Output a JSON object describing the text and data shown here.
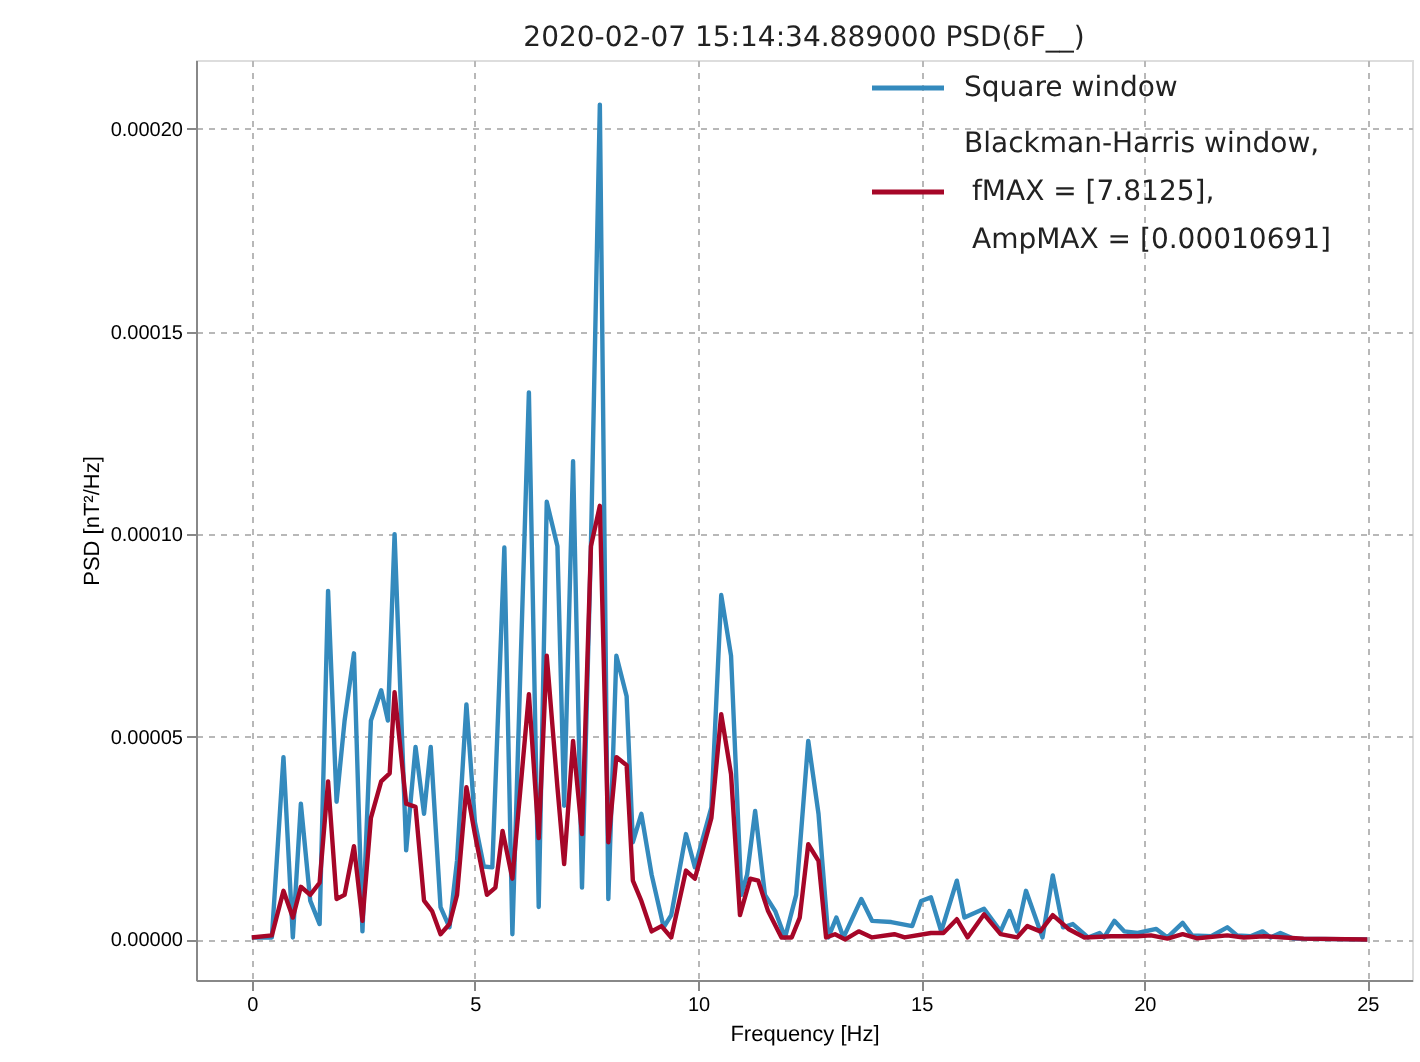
{
  "chart_data": {
    "type": "line",
    "title": "2020-02-07 15:14:34.889000 PSD(δF__)",
    "xlabel": "Frequency [Hz]",
    "ylabel": "PSD [nT²/Hz]",
    "xlim": [
      -1.25,
      26
    ],
    "ylim": [
      -1e-05,
      0.000217
    ],
    "xticks": [
      0,
      5,
      10,
      15,
      20,
      25
    ],
    "yticks": [
      {
        "value": 0,
        "label": "0.00000"
      },
      {
        "value": 5e-05,
        "label": "0.00005"
      },
      {
        "value": 0.0001,
        "label": "0.00010"
      },
      {
        "value": 0.00015,
        "label": "0.00015"
      },
      {
        "value": 0.0002,
        "label": "0.00020"
      }
    ],
    "grid": true,
    "legend": "top right",
    "marker": "none",
    "line_style": "solid",
    "series": [
      {
        "name": "Square window",
        "color": "#348abd",
        "x": [
          0,
          0.45,
          0.71,
          0.92,
          1.1,
          1.31,
          1.52,
          1.71,
          1.9,
          2.08,
          2.29,
          2.48,
          2.67,
          2.9,
          3.05,
          3.2,
          3.46,
          3.67,
          3.86,
          4.01,
          4.23,
          4.43,
          4.6,
          4.81,
          5.0,
          5.2,
          5.39,
          5.66,
          5.84,
          6.21,
          6.43,
          6.61,
          6.85,
          7.0,
          7.2,
          7.4,
          7.6,
          7.8,
          7.99,
          8.17,
          8.4,
          8.54,
          8.73,
          8.96,
          9.23,
          9.4,
          9.73,
          9.93,
          10.3,
          10.52,
          10.74,
          10.97,
          11.1,
          11.28,
          11.5,
          11.73,
          11.95,
          12.2,
          12.47,
          12.7,
          12.92,
          13.1,
          13.26,
          13.66,
          13.9,
          14.33,
          14.8,
          15.0,
          15.22,
          15.45,
          15.8,
          15.97,
          16.41,
          16.78,
          16.98,
          17.15,
          17.35,
          17.72,
          17.95,
          18.18,
          18.4,
          18.74,
          19.0,
          19.1,
          19.33,
          19.55,
          19.85,
          20.27,
          20.52,
          20.86,
          21.07,
          21.5,
          21.86,
          22.08,
          22.38,
          22.65,
          22.83,
          23.05,
          23.35,
          25.0
        ],
        "values": [
          5e-07,
          5e-07,
          4.5e-05,
          5e-07,
          3.35e-05,
          9.6e-06,
          3.8e-06,
          8.6e-05,
          3.4e-05,
          5.4e-05,
          7.06e-05,
          2e-06,
          5.4e-05,
          6.15e-05,
          5.4e-05,
          0.0001,
          2.2e-05,
          4.75e-05,
          3.1e-05,
          4.75e-05,
          8e-06,
          3e-06,
          1.95e-05,
          5.8e-05,
          2.9e-05,
          1.8e-05,
          1.78e-05,
          9.67e-05,
          1.3e-06,
          0.000135,
          8e-06,
          0.000108,
          9.7e-05,
          3.3e-05,
          0.000118,
          1.28e-05,
          9.7e-05,
          0.000206,
          1e-05,
          7e-05,
          6e-05,
          2.4e-05,
          3.1e-05,
          1.6e-05,
          3e-06,
          6e-06,
          2.6e-05,
          1.78e-05,
          3.26e-05,
          8.5e-05,
          7e-05,
          1.1e-05,
          1.6e-05,
          3.17e-05,
          1.1e-05,
          7e-06,
          5e-07,
          1.1e-05,
          4.9e-05,
          3.1e-05,
          5e-07,
          5.4e-06,
          5e-07,
          1e-05,
          4.6e-06,
          4.3e-06,
          3.3e-06,
          9.5e-06,
          1.04e-05,
          2e-06,
          1.45e-05,
          5.4e-06,
          7.6e-06,
          2e-06,
          7e-06,
          2e-06,
          1.2e-05,
          5e-07,
          1.58e-05,
          3e-06,
          3.8e-06,
          5e-07,
          1.6e-06,
          5e-07,
          4.6e-06,
          2e-06,
          1.6e-06,
          2.6e-06,
          5e-07,
          4.1e-06,
          1e-06,
          8e-07,
          3e-06,
          1e-06,
          8e-07,
          2e-06,
          5e-07,
          1.6e-06,
          2e-07,
          0
        ]
      },
      {
        "name": "Blackman-Harris window, fMAX = [7.8125], AmpMAX = [0.00010691]",
        "color": "#a60628",
        "x": [
          0,
          0.45,
          0.71,
          0.92,
          1.1,
          1.31,
          1.52,
          1.71,
          1.9,
          2.08,
          2.29,
          2.48,
          2.67,
          2.9,
          3.09,
          3.2,
          3.46,
          3.67,
          3.86,
          4.04,
          4.23,
          4.43,
          4.6,
          4.81,
          5.0,
          5.27,
          5.46,
          5.62,
          5.84,
          6.21,
          6.43,
          6.61,
          6.85,
          7.0,
          7.2,
          7.4,
          7.6,
          7.8,
          7.99,
          8.17,
          8.4,
          8.54,
          8.73,
          8.96,
          9.18,
          9.4,
          9.73,
          9.93,
          10.3,
          10.52,
          10.74,
          10.94,
          11.17,
          11.35,
          11.57,
          11.87,
          12.1,
          12.28,
          12.47,
          12.7,
          12.87,
          13.07,
          13.3,
          13.6,
          13.9,
          14.4,
          14.63,
          15.22,
          15.5,
          15.8,
          16.04,
          16.41,
          16.78,
          17.15,
          17.38,
          17.67,
          17.95,
          18.3,
          18.66,
          19.26,
          19.85,
          20.15,
          20.52,
          20.86,
          21.19,
          21.86,
          22.23,
          22.68,
          23.13,
          23.57,
          25.0
        ],
        "values": [
          5e-07,
          1e-06,
          1.2e-05,
          5.4e-06,
          1.3e-05,
          1.1e-05,
          1.4e-05,
          3.9e-05,
          1e-05,
          1.1e-05,
          2.3e-05,
          4.6e-06,
          3e-05,
          3.9e-05,
          4.1e-05,
          6.1e-05,
          3.35e-05,
          3.27e-05,
          9.6e-06,
          7e-06,
          1.3e-06,
          3.8e-06,
          1.1e-05,
          3.76e-05,
          2.6e-05,
          1.1e-05,
          1.28e-05,
          2.68e-05,
          1.5e-05,
          6.05e-05,
          2.5e-05,
          7e-05,
          3.75e-05,
          1.86e-05,
          4.9e-05,
          2.6e-05,
          9.7e-05,
          0.000107,
          2.4e-05,
          4.5e-05,
          4.3e-05,
          1.45e-05,
          9.5e-06,
          2e-06,
          3.3e-06,
          5e-07,
          1.7e-05,
          1.5e-05,
          3e-05,
          5.56e-05,
          4.08e-05,
          6e-06,
          1.5e-05,
          1.45e-05,
          7e-06,
          5e-07,
          5e-07,
          5.4e-06,
          2.35e-05,
          1.94e-05,
          5e-07,
          1.3e-06,
          0,
          2e-06,
          5e-07,
          1.3e-06,
          5e-07,
          1.6e-06,
          1.6e-06,
          5e-06,
          5e-07,
          6.2e-06,
          1.3e-06,
          5e-07,
          3.3e-06,
          2e-06,
          6e-06,
          2.6e-06,
          5e-07,
          8e-07,
          8e-07,
          1e-06,
          2e-07,
          1.3e-06,
          3e-07,
          1e-06,
          5e-07,
          8e-07,
          5e-07,
          2e-07,
          0
        ]
      }
    ]
  }
}
